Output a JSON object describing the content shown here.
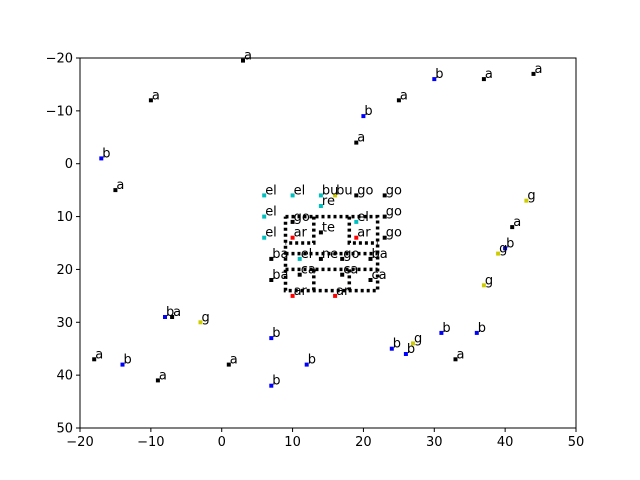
{
  "chart_data": {
    "type": "scatter",
    "title": "",
    "xlabel": "",
    "ylabel": "",
    "xlim": [
      -20,
      50
    ],
    "ylim": [
      50,
      -20
    ],
    "y_inverted": true,
    "grid": false,
    "legend": "none",
    "x_ticks": [
      "−20",
      "−10",
      "0",
      "10",
      "20",
      "30",
      "40",
      "50"
    ],
    "y_ticks": [
      "−20",
      "−10",
      "0",
      "10",
      "20",
      "30",
      "40",
      "50"
    ],
    "colors": {
      "a": "#000000",
      "b": "#0000ff",
      "g": "#cccc00",
      "el": "#00bfbf",
      "ar": "#ff0000",
      "ca": "#000000",
      "go": "#000000",
      "ba": "#000000",
      "bu": "#00bfbf",
      "re": "#00bfbf",
      "te": "#000000",
      "ne": "#000000",
      "bo": "#000000"
    },
    "points": [
      {
        "x": 3,
        "y": -19.5,
        "label": "a",
        "cls": "a"
      },
      {
        "x": -10,
        "y": -12,
        "label": "a",
        "cls": "a"
      },
      {
        "x": 25,
        "y": -12,
        "label": "a",
        "cls": "a"
      },
      {
        "x": 37,
        "y": -16,
        "label": "a",
        "cls": "a"
      },
      {
        "x": 44,
        "y": -17,
        "label": "a",
        "cls": "a"
      },
      {
        "x": 30,
        "y": -16,
        "label": "b",
        "cls": "b"
      },
      {
        "x": 20,
        "y": -9,
        "label": "b",
        "cls": "b"
      },
      {
        "x": 19,
        "y": -4,
        "label": "a",
        "cls": "a"
      },
      {
        "x": -17,
        "y": -1,
        "label": "b",
        "cls": "b"
      },
      {
        "x": -15,
        "y": 5,
        "label": "a",
        "cls": "a"
      },
      {
        "x": 43,
        "y": 7,
        "label": "g",
        "cls": "g"
      },
      {
        "x": 41,
        "y": 12,
        "label": "a",
        "cls": "a"
      },
      {
        "x": 40,
        "y": 16,
        "label": "b",
        "cls": "b"
      },
      {
        "x": 39,
        "y": 17,
        "label": "g",
        "cls": "g"
      },
      {
        "x": 37,
        "y": 23,
        "label": "g",
        "cls": "g"
      },
      {
        "x": -8,
        "y": 29,
        "label": "b",
        "cls": "b"
      },
      {
        "x": -7,
        "y": 29,
        "label": "a",
        "cls": "a"
      },
      {
        "x": -3,
        "y": 30,
        "label": "g",
        "cls": "g"
      },
      {
        "x": 7,
        "y": 33,
        "label": "b",
        "cls": "b"
      },
      {
        "x": 31,
        "y": 32,
        "label": "b",
        "cls": "b"
      },
      {
        "x": 36,
        "y": 32,
        "label": "b",
        "cls": "b"
      },
      {
        "x": 27,
        "y": 34,
        "label": "g",
        "cls": "g"
      },
      {
        "x": 24,
        "y": 35,
        "label": "b",
        "cls": "b"
      },
      {
        "x": 26,
        "y": 36,
        "label": "b",
        "cls": "b"
      },
      {
        "x": 33,
        "y": 37,
        "label": "a",
        "cls": "a"
      },
      {
        "x": -18,
        "y": 37,
        "label": "a",
        "cls": "a"
      },
      {
        "x": -14,
        "y": 38,
        "label": "b",
        "cls": "b"
      },
      {
        "x": 1,
        "y": 38,
        "label": "a",
        "cls": "a"
      },
      {
        "x": 12,
        "y": 38,
        "label": "b",
        "cls": "b"
      },
      {
        "x": -9,
        "y": 41,
        "label": "a",
        "cls": "a"
      },
      {
        "x": 7,
        "y": 42,
        "label": "b",
        "cls": "b"
      },
      {
        "x": 6,
        "y": 6,
        "label": "el",
        "cls": "el"
      },
      {
        "x": 10,
        "y": 6,
        "label": "el",
        "cls": "el"
      },
      {
        "x": 14,
        "y": 6,
        "label": "bu",
        "cls": "bu"
      },
      {
        "x": 16,
        "y": 6,
        "label": "bu",
        "cls": "g"
      },
      {
        "x": 19,
        "y": 6,
        "label": "go",
        "cls": "go"
      },
      {
        "x": 23,
        "y": 6,
        "label": "go",
        "cls": "go"
      },
      {
        "x": 14,
        "y": 8,
        "label": "re",
        "cls": "re"
      },
      {
        "x": 6,
        "y": 10,
        "label": "el",
        "cls": "el"
      },
      {
        "x": 10,
        "y": 11,
        "label": "go",
        "cls": "go"
      },
      {
        "x": 19,
        "y": 11,
        "label": "el",
        "cls": "el"
      },
      {
        "x": 23,
        "y": 10,
        "label": "go",
        "cls": "go"
      },
      {
        "x": 14,
        "y": 13,
        "label": "te",
        "cls": "te"
      },
      {
        "x": 6,
        "y": 14,
        "label": "el",
        "cls": "el"
      },
      {
        "x": 10,
        "y": 14,
        "label": "ar",
        "cls": "ar"
      },
      {
        "x": 19,
        "y": 14,
        "label": "ar",
        "cls": "ar"
      },
      {
        "x": 23,
        "y": 14,
        "label": "go",
        "cls": "go"
      },
      {
        "x": 7,
        "y": 18,
        "label": "ba",
        "cls": "ba"
      },
      {
        "x": 11,
        "y": 18,
        "label": "el",
        "cls": "el"
      },
      {
        "x": 14,
        "y": 18,
        "label": "ne",
        "cls": "ne"
      },
      {
        "x": 17,
        "y": 18,
        "label": "go",
        "cls": "go"
      },
      {
        "x": 21,
        "y": 18,
        "label": "ba",
        "cls": "ba"
      },
      {
        "x": 11,
        "y": 21,
        "label": "ca",
        "cls": "ca"
      },
      {
        "x": 17,
        "y": 21,
        "label": "ca",
        "cls": "ca"
      },
      {
        "x": 7,
        "y": 22,
        "label": "ba",
        "cls": "ba"
      },
      {
        "x": 21,
        "y": 22,
        "label": "ca",
        "cls": "ca"
      },
      {
        "x": 10,
        "y": 25,
        "label": "ar",
        "cls": "ar"
      },
      {
        "x": 16,
        "y": 25,
        "label": "ar",
        "cls": "ar"
      }
    ],
    "boxes": [
      [
        [
          9,
          10
        ],
        [
          22,
          10
        ],
        [
          22,
          24
        ],
        [
          9,
          24
        ],
        [
          9,
          10
        ]
      ],
      [
        [
          13,
          10
        ],
        [
          13,
          15
        ],
        [
          9,
          15
        ]
      ],
      [
        [
          18,
          10
        ],
        [
          18,
          15
        ],
        [
          22,
          15
        ]
      ],
      [
        [
          9,
          20
        ],
        [
          22,
          20
        ]
      ],
      [
        [
          13,
          20
        ],
        [
          13,
          24
        ]
      ],
      [
        [
          18,
          20
        ],
        [
          18,
          24
        ]
      ],
      [
        [
          9,
          17
        ],
        [
          22,
          17
        ]
      ]
    ]
  }
}
